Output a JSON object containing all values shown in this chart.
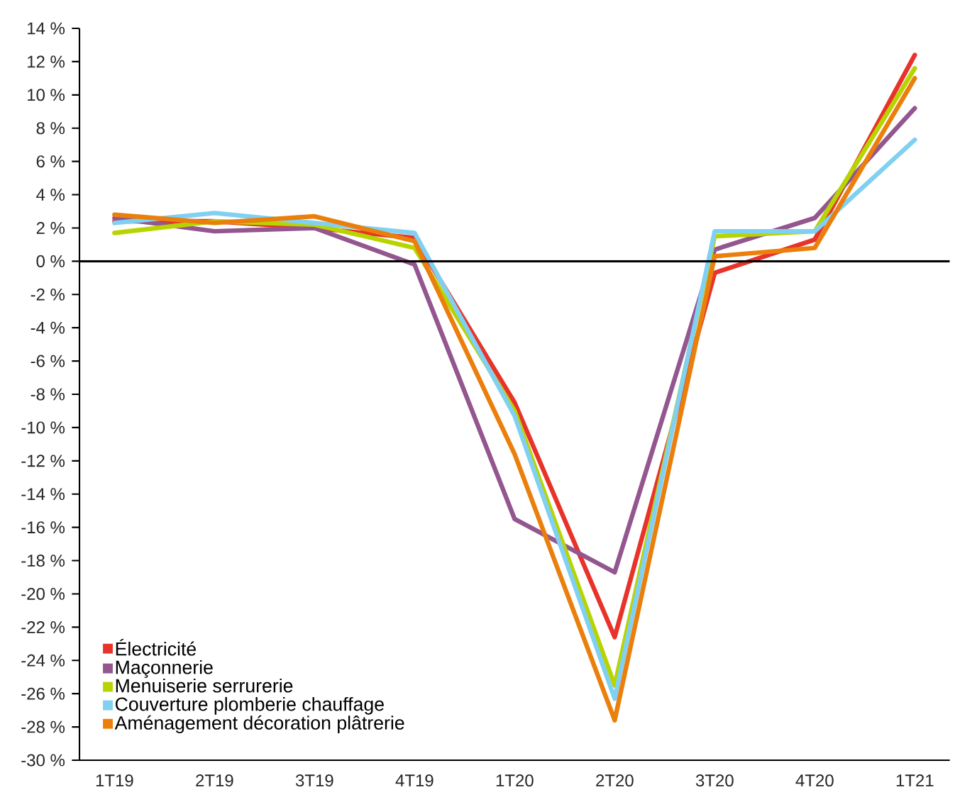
{
  "chart_data": {
    "type": "line",
    "categories": [
      "1T19",
      "2T19",
      "3T19",
      "4T19",
      "1T20",
      "2T20",
      "3T20",
      "4T20",
      "1T21"
    ],
    "series": [
      {
        "name": "Électricité",
        "color": "#e8332a",
        "values": [
          2.4,
          2.4,
          2.0,
          1.4,
          -8.5,
          -22.6,
          -0.7,
          1.3,
          12.4
        ]
      },
      {
        "name": "Maçonnerie",
        "color": "#93568f",
        "values": [
          2.6,
          1.8,
          2.0,
          -0.2,
          -15.5,
          -18.7,
          0.7,
          2.6,
          9.2
        ]
      },
      {
        "name": "Menuiserie serrurerie",
        "color": "#b8d400",
        "values": [
          1.7,
          2.4,
          2.2,
          0.8,
          -9.0,
          -25.5,
          1.5,
          1.8,
          11.6
        ]
      },
      {
        "name": "Couverture plomberie chauffage",
        "color": "#80d0f2",
        "values": [
          2.3,
          2.9,
          2.3,
          1.7,
          -9.3,
          -26.3,
          1.8,
          1.8,
          7.3
        ]
      },
      {
        "name": "Aménagement décoration plâtrerie",
        "color": "#ea7f0c",
        "values": [
          2.8,
          2.3,
          2.7,
          1.2,
          -11.6,
          -27.6,
          0.3,
          0.8,
          11.0
        ]
      }
    ],
    "ylim": [
      -30,
      14
    ],
    "yticks": [
      {
        "value": -30,
        "label": "-30 %"
      },
      {
        "value": -28,
        "label": "-28 %"
      },
      {
        "value": -26,
        "label": "-26 %"
      },
      {
        "value": -24,
        "label": "-24 %"
      },
      {
        "value": -22,
        "label": "-22 %"
      },
      {
        "value": -20,
        "label": "-20 %"
      },
      {
        "value": -18,
        "label": "-18 %"
      },
      {
        "value": -16,
        "label": "-16 %"
      },
      {
        "value": -14,
        "label": "-14 %"
      },
      {
        "value": -12,
        "label": "-12 %"
      },
      {
        "value": -10,
        "label": "-10 %"
      },
      {
        "value": -8,
        "label": "-8 %"
      },
      {
        "value": -6,
        "label": "-6 %"
      },
      {
        "value": -4,
        "label": "-4 %"
      },
      {
        "value": -2,
        "label": "-2 %"
      },
      {
        "value": 0,
        "label": "0 %"
      },
      {
        "value": 2,
        "label": "2 %"
      },
      {
        "value": 4,
        "label": "4 %"
      },
      {
        "value": 6,
        "label": "6 %"
      },
      {
        "value": 8,
        "label": "8 %"
      },
      {
        "value": 10,
        "label": "10 %"
      },
      {
        "value": 12,
        "label": "12 %"
      },
      {
        "value": 14,
        "label": "14 %"
      }
    ],
    "ref_lines": [
      {
        "axis": "y",
        "value": 0,
        "color": "#000000"
      }
    ],
    "grid": false,
    "legend": "bottom left",
    "marker": "none",
    "line_style": "solid"
  }
}
